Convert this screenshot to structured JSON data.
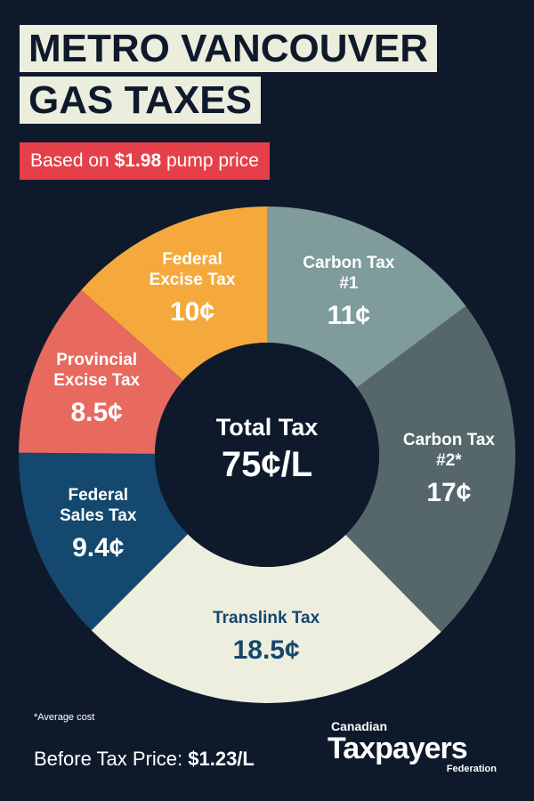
{
  "chart_data": {
    "type": "donut",
    "title": "METRO VANCOUVER GAS TAXES",
    "subtitle": {
      "prefix": "Based on",
      "price": "$1.98",
      "suffix": "pump price"
    },
    "center_label": "Total Tax",
    "center_value": "75¢/L",
    "categories": [
      "Carbon Tax #1",
      "Carbon Tax #2*",
      "Translink Tax",
      "Federal Sales Tax",
      "Provincial Excise Tax",
      "Federal Excise Tax"
    ],
    "values": [
      11,
      17,
      18.5,
      9.4,
      8.5,
      10
    ],
    "value_labels": [
      "11¢",
      "17¢",
      "18.5¢",
      "9.4¢",
      "8.5¢",
      "10¢"
    ],
    "colors": [
      "#7f9b9b",
      "#55676a",
      "#eeeedf",
      "#14486e",
      "#e8695e",
      "#f5a93c"
    ],
    "label_colors": [
      "#ffffff",
      "#ffffff",
      "#14486e",
      "#ffffff",
      "#ffffff",
      "#ffffff"
    ],
    "footnote": "*Average cost",
    "before_tax": {
      "label": "Before Tax Price:",
      "value": "$1.23/L"
    },
    "logo": {
      "top": "Canadian",
      "main": "Taxpayers",
      "bottom": "Federation"
    }
  }
}
